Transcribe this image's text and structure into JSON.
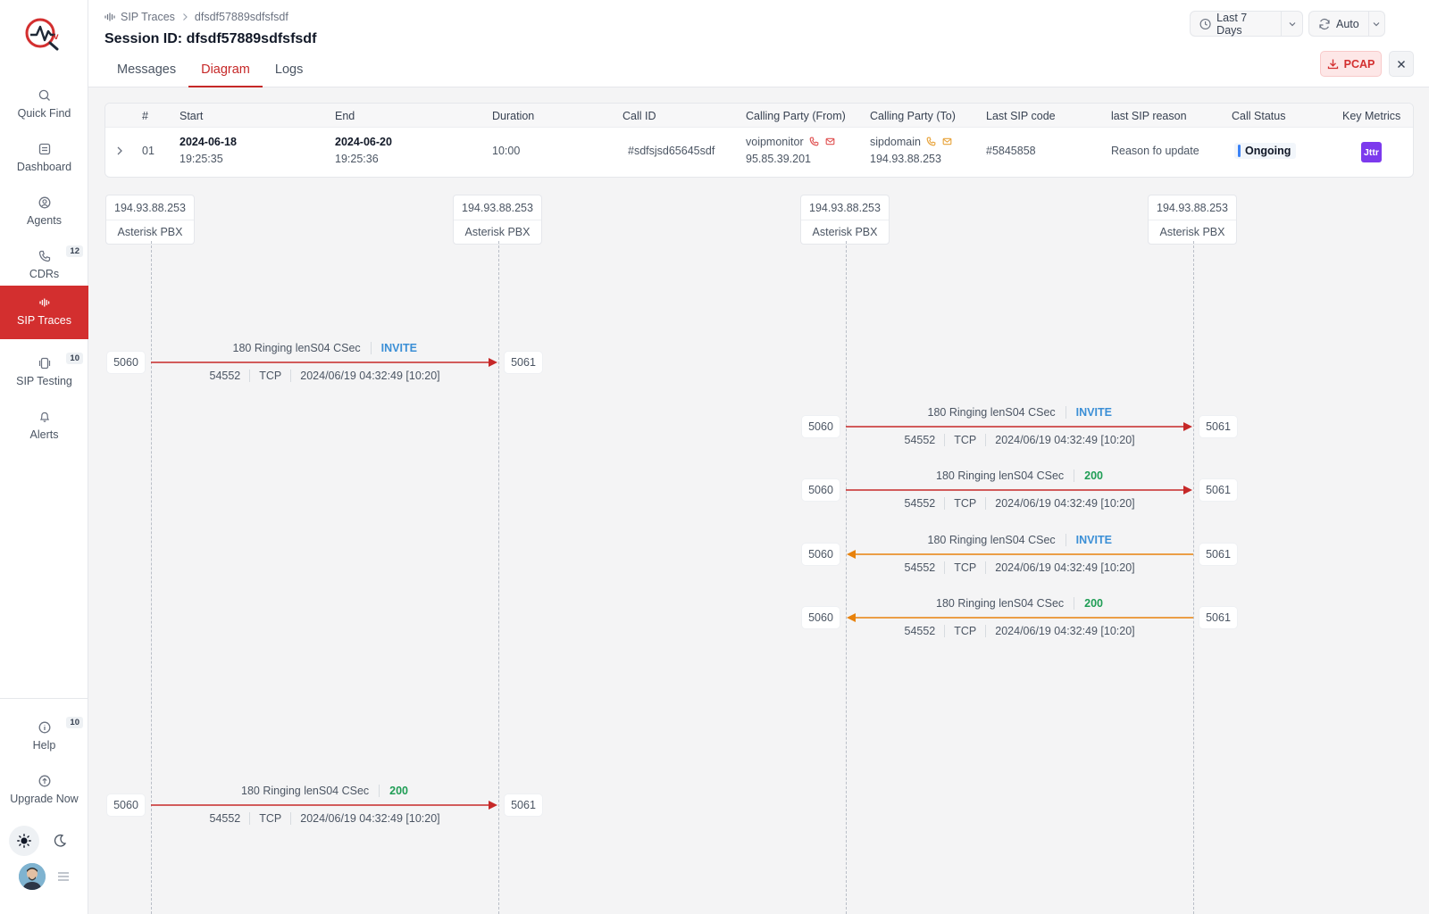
{
  "nav": {
    "items": [
      {
        "label": "Quick Find",
        "icon": "search-icon",
        "badge": ""
      },
      {
        "label": "Dashboard",
        "icon": "dashboard-icon",
        "badge": ""
      },
      {
        "label": "Agents",
        "icon": "agents-icon",
        "badge": ""
      },
      {
        "label": "CDRs",
        "icon": "phone-icon",
        "badge": "12"
      },
      {
        "label": "SIP Traces",
        "icon": "waveform-icon",
        "badge": "",
        "active": true
      },
      {
        "label": "SIP Testing",
        "icon": "device-icon",
        "badge": "10"
      },
      {
        "label": "Alerts",
        "icon": "bell-icon",
        "badge": ""
      }
    ],
    "bottom": [
      {
        "label": "Help",
        "icon": "info-icon",
        "badge": "10"
      },
      {
        "label": "Upgrade Now",
        "icon": "upgrade-icon",
        "badge": ""
      }
    ]
  },
  "header": {
    "breadcrumb_root": "SIP Traces",
    "breadcrumb_current": "dfsdf57889sdfsfsdf",
    "title": "Session ID: dfsdf57889sdfsfsdf",
    "tabs": [
      "Messages",
      "Diagram",
      "Logs"
    ],
    "active_tab": "Diagram",
    "time_range": "Last 7 Days",
    "refresh": "Auto",
    "pcap_label": "PCAP"
  },
  "table": {
    "headers": [
      "#",
      "Start",
      "End",
      "Duration",
      "Call ID",
      "Calling Party (From)",
      "Calling Party (To)",
      "Last SIP code",
      "last SIP reason",
      "Call Status",
      "Key Metrics"
    ],
    "row": {
      "num": "01",
      "start_date": "2024-06-18",
      "start_time": "19:25:35",
      "end_date": "2024-06-20",
      "end_time": "19:25:36",
      "duration": "10:00",
      "call_id": "#sdfsjsd65645sdf",
      "from_name": "voipmonitor",
      "from_ip": "95.85.39.201",
      "to_name": "sipdomain",
      "to_ip": "194.93.88.253",
      "last_sip_code": "#5845858",
      "last_sip_reason": "Reason fo update",
      "status": "Ongoing",
      "metric": "Jttr"
    }
  },
  "diagram": {
    "nodes": [
      {
        "ip": "194.93.88.253",
        "name": "Asterisk PBX"
      },
      {
        "ip": "194.93.88.253",
        "name": "Asterisk PBX"
      },
      {
        "ip": "194.93.88.253",
        "name": "Asterisk PBX"
      },
      {
        "ip": "194.93.88.253",
        "name": "Asterisk PBX"
      }
    ],
    "messages": [
      {
        "text": "180 Ringing lenS04 CSec",
        "method": "INVITE",
        "method_kind": "invite",
        "from_node": 0,
        "to_node": 1,
        "src_port": "5060",
        "dst_port": "5061",
        "seq": "54552",
        "proto": "TCP",
        "time": "2024/06/19 04:32:49 [10:20]",
        "color": "#c62828"
      },
      {
        "text": "180 Ringing lenS04 CSec",
        "method": "INVITE",
        "method_kind": "invite",
        "from_node": 2,
        "to_node": 3,
        "src_port": "5060",
        "dst_port": "5061",
        "seq": "54552",
        "proto": "TCP",
        "time": "2024/06/19 04:32:49 [10:20]",
        "color": "#c62828"
      },
      {
        "text": "180 Ringing lenS04 CSec",
        "method": "200",
        "method_kind": "ok",
        "from_node": 2,
        "to_node": 3,
        "src_port": "5060",
        "dst_port": "5061",
        "seq": "54552",
        "proto": "TCP",
        "time": "2024/06/19 04:32:49 [10:20]",
        "color": "#c62828"
      },
      {
        "text": "180 Ringing lenS04 CSec",
        "method": "INVITE",
        "method_kind": "invite",
        "from_node": 3,
        "to_node": 2,
        "src_port": "5060",
        "dst_port": "5061",
        "seq": "54552",
        "proto": "TCP",
        "time": "2024/06/19 04:32:49 [10:20]",
        "color": "#e8820c"
      },
      {
        "text": "180 Ringing lenS04 CSec",
        "method": "200",
        "method_kind": "ok",
        "from_node": 3,
        "to_node": 2,
        "src_port": "5060",
        "dst_port": "5061",
        "seq": "54552",
        "proto": "TCP",
        "time": "2024/06/19 04:32:49 [10:20]",
        "color": "#e8820c"
      },
      {
        "text": "180 Ringing lenS04 CSec",
        "method": "200",
        "method_kind": "ok",
        "from_node": 0,
        "to_node": 1,
        "src_port": "5060",
        "dst_port": "5061",
        "seq": "54552",
        "proto": "TCP",
        "time": "2024/06/19 04:32:49 [10:20]",
        "color": "#c62828"
      }
    ]
  },
  "colors": {
    "accent": "#d32f2f",
    "invite": "#3b8fd6",
    "ok": "#1f9d55",
    "forward": "#c62828",
    "reply": "#e8820c"
  }
}
